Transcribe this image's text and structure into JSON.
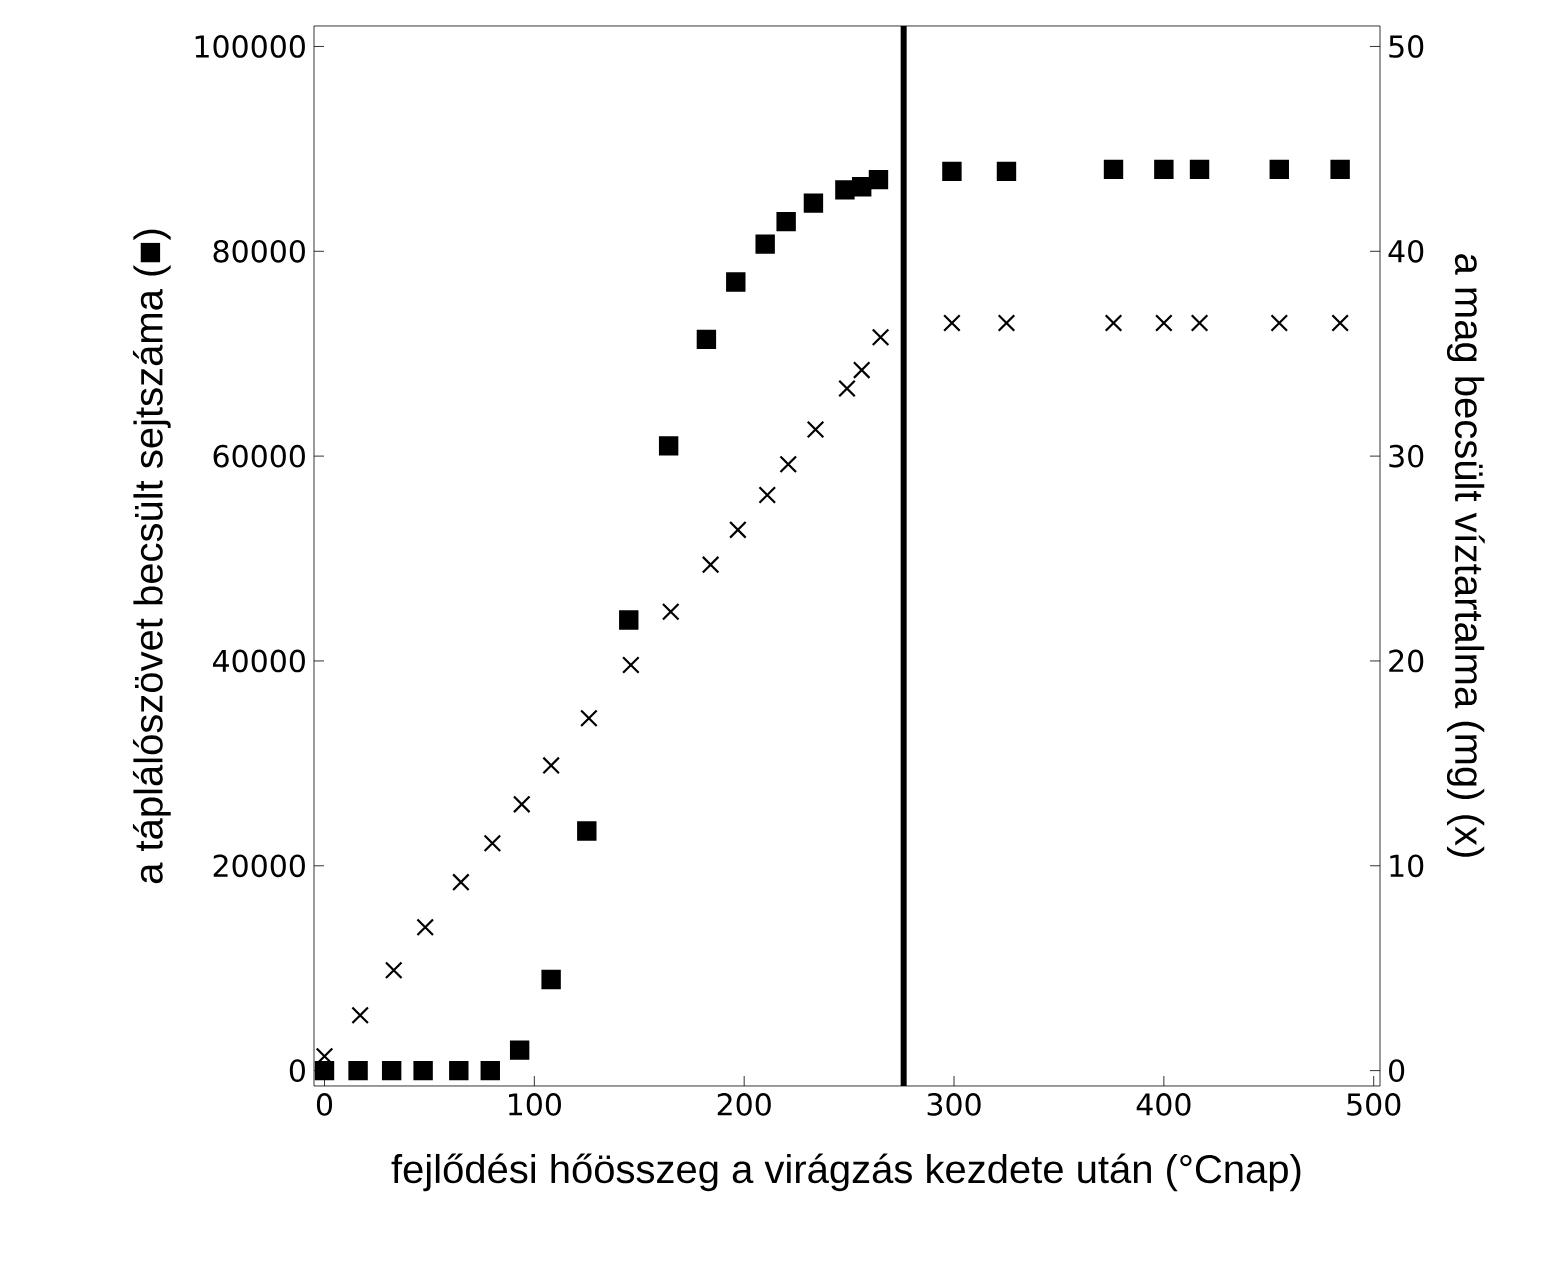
{
  "chart_data": {
    "type": "scatter",
    "xlabel": "fejlődési hőösszeg a virágzás kezdete után (°Cnap)",
    "ylabel": "a táplálószövet becsült sejtszáma (■)",
    "y2label": "a mag becsült víztartalma (mg) (x)",
    "xlim": [
      -5,
      503
    ],
    "xticks": [
      0,
      100,
      200,
      300,
      400,
      500
    ],
    "ylim": [
      -1500,
      102000
    ],
    "yticks": [
      0,
      20000,
      40000,
      60000,
      80000,
      100000
    ],
    "y2lim": [
      -0.75,
      51
    ],
    "y2ticks": [
      0,
      10,
      20,
      30,
      40,
      50
    ],
    "ref_lines": [
      {
        "axis": "x",
        "value": 276,
        "color": "#000000"
      }
    ],
    "series": [
      {
        "marker": "square",
        "color": "#000000",
        "x": [
          0,
          16,
          32,
          47,
          64,
          79,
          93,
          108,
          125,
          145,
          164,
          182,
          196,
          210,
          220,
          233,
          248,
          256,
          264,
          299,
          325,
          376,
          400,
          417,
          455,
          484
        ],
        "values": [
          0,
          0,
          0,
          0,
          0,
          0,
          2000,
          8900,
          23400,
          44000,
          61000,
          71400,
          77000,
          80700,
          82900,
          84700,
          86000,
          86300,
          87000,
          87800,
          87800,
          88000,
          88000,
          88000,
          88000,
          88000
        ]
      },
      {
        "marker": "cross",
        "axis": "y2",
        "color": "#000000",
        "x": [
          0,
          17,
          33,
          48,
          65,
          80,
          94,
          108,
          126,
          146,
          165,
          184,
          197,
          211,
          221,
          234,
          249,
          256,
          265,
          299,
          325,
          376,
          400,
          417,
          455,
          484
        ],
        "values": [
          0.7,
          2.7,
          4.9,
          7.0,
          9.2,
          11.1,
          13.0,
          14.9,
          17.2,
          19.8,
          22.4,
          24.7,
          26.4,
          28.1,
          29.6,
          31.3,
          33.3,
          34.2,
          35.8,
          36.5,
          36.5,
          36.5,
          36.5,
          36.5,
          36.5,
          36.5
        ]
      }
    ]
  }
}
